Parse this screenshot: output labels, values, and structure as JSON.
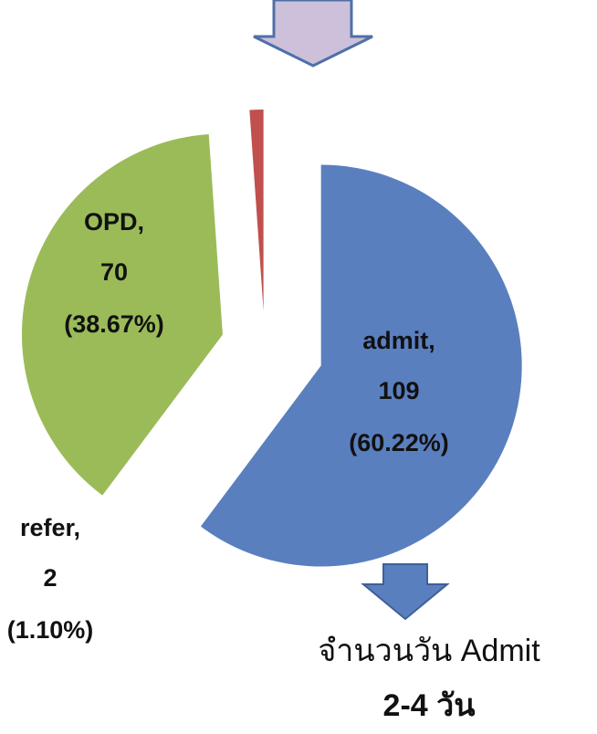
{
  "chart_data": {
    "type": "pie",
    "categories": [
      "admit,",
      "OPD,",
      "refer,"
    ],
    "values": [
      109,
      70,
      2
    ],
    "percent_labels": [
      "(60.22%)",
      "(38.67%)",
      "(1.10%)"
    ],
    "colors": [
      "#5a7fbf",
      "#9bbb59",
      "#c0504d"
    ],
    "annotations": [
      "จำนวนวัน Admit",
      "2-4 วัน"
    ]
  }
}
